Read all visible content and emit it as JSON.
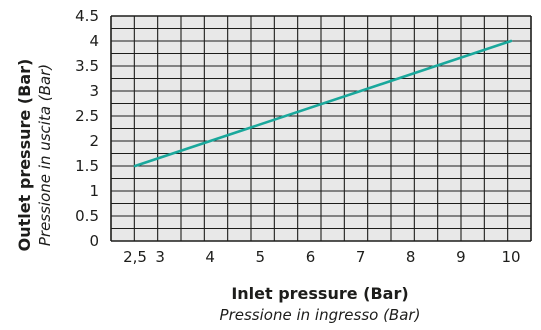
{
  "chart_data": {
    "type": "line",
    "xlabel": "Inlet pressure (Bar)",
    "xlabel_secondary": "Pressione in ingresso (Bar)",
    "ylabel": "Outlet pressure (Bar)",
    "ylabel_secondary": "Pressione in uscita (Bar)",
    "x_ticks": [
      "2,5",
      "3",
      "4",
      "5",
      "6",
      "7",
      "8",
      "9",
      "10"
    ],
    "x_tick_values": [
      2.5,
      3,
      4,
      5,
      6,
      7,
      8,
      9,
      10
    ],
    "y_ticks": [
      "0",
      "0.5",
      "1",
      "1.5",
      "2",
      "2.5",
      "3",
      "3.5",
      "4",
      "4.5"
    ],
    "y_tick_values": [
      0,
      0.5,
      1,
      1.5,
      2,
      2.5,
      3,
      3.5,
      4,
      4.5
    ],
    "xlim": [
      2.5,
      10
    ],
    "ylim": [
      0,
      4.5
    ],
    "grid": true,
    "series": [
      {
        "x": [
          2.5,
          10
        ],
        "y": [
          1.5,
          4.0
        ]
      }
    ],
    "colors": {
      "line": "#1aa89c",
      "grid": "#1d1d1b",
      "plot_bg": "#e8e8e8"
    }
  }
}
